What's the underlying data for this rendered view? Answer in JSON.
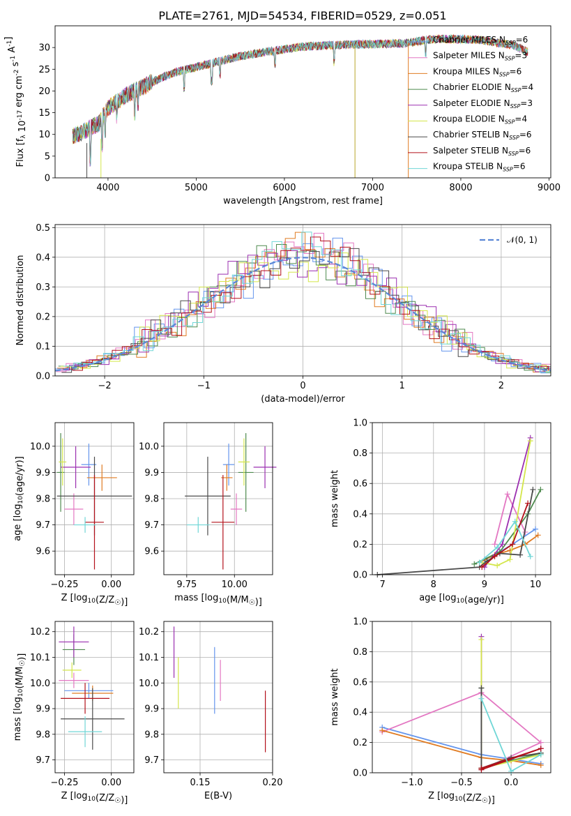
{
  "figure": {
    "title": "PLATE=2761, MJD=54534, FIBERID=0529, z=0.051"
  },
  "colors": {
    "Chabrier MILES": "#6495ed",
    "Salpeter MILES": "#e377c2",
    "Kroupa MILES": "#e07b22",
    "Chabrier ELODIE": "#4e8a4e",
    "Salpeter ELODIE": "#9b2fb0",
    "Kroupa ELODIE": "#d4e64a",
    "Chabrier STELIB": "#4a4a4a",
    "Salpeter STELIB": "#b3101a",
    "Kroupa STELIB": "#6fd6d6"
  },
  "chart_data": [
    {
      "type": "line",
      "title": "PLATE=2761, MJD=54534, FIBERID=0529, z=0.051",
      "xlabel": "wavelength [Angstrom, rest frame]",
      "ylabel": "Flux [f_λ 10^-17 erg cm^-2 s^-1 A^-1]",
      "xlim": [
        3400,
        9020
      ],
      "ylim": [
        0,
        35
      ],
      "xticks": [
        "4000",
        "5000",
        "6000",
        "7000",
        "8000",
        "9000"
      ],
      "yticks": [
        "0",
        "5",
        "10",
        "15",
        "20",
        "25",
        "30"
      ],
      "legend_position": "right",
      "legend": [
        {
          "name": "Chabrier MILES",
          "sub": "SSP",
          "n": "=6"
        },
        {
          "name": "Salpeter MILES",
          "sub": "SSP",
          "n": "=3"
        },
        {
          "name": "Kroupa MILES",
          "sub": "SSP",
          "n": "=6"
        },
        {
          "name": "Chabrier ELODIE",
          "sub": "SSP",
          "n": "=4"
        },
        {
          "name": "Salpeter ELODIE",
          "sub": "SSP",
          "n": "=3"
        },
        {
          "name": "Kroupa ELODIE",
          "sub": "SSP",
          "n": "=4"
        },
        {
          "name": "Chabrier STELIB",
          "sub": "SSP",
          "n": "=6"
        },
        {
          "name": "Salpeter STELIB",
          "sub": "SSP",
          "n": "=6"
        },
        {
          "name": "Kroupa STELIB",
          "sub": "SSP",
          "n": "=6"
        }
      ],
      "continuum": [
        [
          3600,
          9.5
        ],
        [
          3750,
          11
        ],
        [
          3900,
          12.5
        ],
        [
          4000,
          16
        ],
        [
          4200,
          19
        ],
        [
          4400,
          21
        ],
        [
          4600,
          23
        ],
        [
          4800,
          24.5
        ],
        [
          5000,
          25.5
        ],
        [
          5200,
          26.5
        ],
        [
          5500,
          28
        ],
        [
          5800,
          29
        ],
        [
          6200,
          30.2
        ],
        [
          6600,
          30.6
        ],
        [
          7000,
          30.8
        ],
        [
          7400,
          31
        ],
        [
          7600,
          31.8
        ],
        [
          7800,
          32
        ],
        [
          8200,
          31.8
        ],
        [
          8600,
          30.5
        ],
        [
          8760,
          29
        ]
      ]
    },
    {
      "type": "histogram",
      "xlabel": "(data-model)/error",
      "ylabel": "Normed distribution",
      "xlim": [
        -2.5,
        2.5
      ],
      "ylim": [
        0,
        0.51
      ],
      "xticks": [
        "−2",
        "−1",
        "0",
        "1",
        "2"
      ],
      "yticks": [
        "0.0",
        "0.1",
        "0.2",
        "0.3",
        "0.4",
        "0.5"
      ],
      "bin_width": 0.1,
      "legend": "𝒩(0, 1)",
      "offsets": [
        [
          0.02,
          -0.01,
          0.03,
          0.0,
          -0.02,
          0.04,
          -0.03,
          0.01,
          0.05,
          -0.04
        ],
        [
          -0.02,
          0.05,
          -0.01,
          0.03,
          0.0,
          -0.03,
          0.04,
          -0.02,
          0.01,
          0.06
        ],
        [
          0.01,
          0.0,
          -0.03,
          0.02,
          0.04,
          -0.01,
          -0.02,
          0.03,
          -0.04,
          0.0
        ],
        [
          0.03,
          -0.02,
          0.02,
          -0.04,
          0.01,
          0.03,
          0.0,
          -0.03,
          0.02,
          -0.01
        ],
        [
          -0.01,
          0.03,
          0.01,
          0.05,
          -0.03,
          0.0,
          0.02,
          0.04,
          -0.02,
          0.03
        ],
        [
          0.04,
          0.01,
          -0.02,
          0.0,
          0.03,
          -0.04,
          0.01,
          0.0,
          0.05,
          -0.02
        ],
        [
          -0.03,
          0.02,
          0.04,
          -0.01,
          0.0,
          0.02,
          -0.03,
          0.01,
          0.0,
          0.04
        ],
        [
          0.0,
          -0.04,
          0.02,
          0.01,
          -0.01,
          0.03,
          0.02,
          -0.02,
          0.03,
          0.01
        ],
        [
          0.02,
          0.03,
          -0.01,
          -0.02,
          0.04,
          0.0,
          -0.01,
          0.03,
          -0.03,
          0.02
        ]
      ]
    },
    {
      "type": "errorbar",
      "xlabel": "Z [log10(Z/Z☉)]",
      "ylabel": "age [log10(age/yr)]",
      "xlim": [
        -0.3,
        0.12
      ],
      "ylim": [
        9.51,
        10.09
      ],
      "xticks": [
        "−0.25",
        "0.00"
      ],
      "yticks": [
        "9.6",
        "9.7",
        "9.8",
        "9.9",
        "10.0"
      ],
      "points": [
        {
          "x": -0.12,
          "xe": 0.04,
          "y": 9.93,
          "ye": 0.08
        },
        {
          "x": -0.2,
          "xe": 0.05,
          "y": 9.76,
          "ye": 0.06
        },
        {
          "x": -0.05,
          "xe": 0.08,
          "y": 9.88,
          "ye": 0.05
        },
        {
          "x": -0.27,
          "xe": 0.02,
          "y": 9.9,
          "ye": 0.15
        },
        {
          "x": -0.19,
          "xe": 0.08,
          "y": 9.92,
          "ye": 0.08
        },
        {
          "x": -0.26,
          "xe": 0.02,
          "y": 9.94,
          "ye": 0.09
        },
        {
          "x": -0.09,
          "xe": 0.2,
          "y": 9.81,
          "ye": 0.15
        },
        {
          "x": -0.09,
          "xe": 0.05,
          "y": 9.71,
          "ye": 0.18
        },
        {
          "x": -0.14,
          "xe": 0.06,
          "y": 9.7,
          "ye": 0.03
        }
      ]
    },
    {
      "type": "errorbar",
      "xlabel": "mass [log10(M/M☉)]",
      "ylabel": "",
      "xlim": [
        9.63,
        10.2
      ],
      "ylim": [
        9.51,
        10.09
      ],
      "xticks": [
        "9.75",
        "10.00"
      ],
      "yticks": [
        "9.6",
        "9.7",
        "9.8",
        "9.9",
        "10.0"
      ],
      "points": [
        {
          "x": 9.97,
          "xe": 0.03,
          "y": 9.93,
          "ye": 0.08
        },
        {
          "x": 10.01,
          "xe": 0.03,
          "y": 9.76,
          "ye": 0.06
        },
        {
          "x": 9.96,
          "xe": 0.03,
          "y": 9.88,
          "ye": 0.05
        },
        {
          "x": 10.06,
          "xe": 0.04,
          "y": 9.9,
          "ye": 0.15
        },
        {
          "x": 10.16,
          "xe": 0.06,
          "y": 9.92,
          "ye": 0.08
        },
        {
          "x": 10.05,
          "xe": 0.03,
          "y": 9.94,
          "ye": 0.09
        },
        {
          "x": 9.86,
          "xe": 0.12,
          "y": 9.81,
          "ye": 0.15
        },
        {
          "x": 9.94,
          "xe": 0.06,
          "y": 9.71,
          "ye": 0.18
        },
        {
          "x": 9.81,
          "xe": 0.06,
          "y": 9.7,
          "ye": 0.03
        }
      ]
    },
    {
      "type": "line",
      "xlabel": "age [log10(age/yr)]",
      "ylabel": "mass weight",
      "xlim": [
        6.8,
        10.3
      ],
      "ylim": [
        0,
        1
      ],
      "xticks": [
        "7",
        "8",
        "9",
        "10"
      ],
      "yticks": [
        "0.0",
        "0.2",
        "0.4",
        "0.6",
        "0.8",
        "1.0"
      ],
      "series": [
        {
          "x": [
            9.0,
            9.3,
            9.55,
            10.0
          ],
          "y": [
            0.1,
            0.15,
            0.2,
            0.3
          ]
        },
        {
          "x": [
            9.2,
            9.45,
            9.8
          ],
          "y": [
            0.2,
            0.53,
            0.28
          ]
        },
        {
          "x": [
            8.9,
            9.2,
            9.5,
            9.8,
            10.05
          ],
          "y": [
            0.08,
            0.13,
            0.16,
            0.2,
            0.26
          ]
        },
        {
          "x": [
            8.8,
            9.3,
            9.85,
            10.1
          ],
          "y": [
            0.07,
            0.15,
            0.4,
            0.56
          ]
        },
        {
          "x": [
            9.0,
            9.35,
            9.9
          ],
          "y": [
            0.05,
            0.2,
            0.9
          ]
        },
        {
          "x": [
            8.95,
            9.25,
            9.5,
            9.9
          ],
          "y": [
            0.08,
            0.06,
            0.1,
            0.88
          ]
        },
        {
          "x": [
            6.9,
            8.9,
            9.05,
            9.3,
            9.7,
            9.95
          ],
          "y": [
            0.0,
            0.05,
            0.09,
            0.14,
            0.13,
            0.56
          ]
        },
        {
          "x": [
            8.95,
            9.2,
            9.55,
            9.85
          ],
          "y": [
            0.05,
            0.12,
            0.2,
            0.47
          ]
        },
        {
          "x": [
            8.9,
            9.25,
            9.6,
            9.9
          ],
          "y": [
            0.08,
            0.18,
            0.35,
            0.12
          ]
        }
      ]
    },
    {
      "type": "errorbar",
      "xlabel": "Z [log10(Z/Z☉)]",
      "ylabel": "mass [log10(M/M☉)]",
      "xlim": [
        -0.3,
        0.12
      ],
      "ylim": [
        9.65,
        10.24
      ],
      "xticks": [
        "−0.25",
        "0.00"
      ],
      "yticks": [
        "9.7",
        "9.8",
        "9.9",
        "10.0",
        "10.1",
        "10.2"
      ],
      "points": [
        {
          "x": -0.12,
          "xe": 0.13,
          "y": 9.97,
          "ye": 0.03
        },
        {
          "x": -0.2,
          "xe": 0.08,
          "y": 10.01,
          "ye": 0.03
        },
        {
          "x": -0.1,
          "xe": 0.11,
          "y": 9.96,
          "ye": 0.03
        },
        {
          "x": -0.2,
          "xe": 0.06,
          "y": 10.13,
          "ye": 0.06
        },
        {
          "x": -0.2,
          "xe": 0.08,
          "y": 10.16,
          "ye": 0.06
        },
        {
          "x": -0.21,
          "xe": 0.05,
          "y": 10.05,
          "ye": 0.03
        },
        {
          "x": -0.1,
          "xe": 0.17,
          "y": 9.86,
          "ye": 0.12
        },
        {
          "x": -0.14,
          "xe": 0.13,
          "y": 9.94,
          "ye": 0.06
        },
        {
          "x": -0.14,
          "xe": 0.09,
          "y": 9.81,
          "ye": 0.06
        }
      ]
    },
    {
      "type": "errorbar",
      "xlabel": "E(B-V)",
      "ylabel": "",
      "xlim": [
        0.125,
        0.2
      ],
      "ylim": [
        9.65,
        10.24
      ],
      "xticks": [
        "0.15",
        "0.20"
      ],
      "yticks": [
        "9.7",
        "9.8",
        "9.9",
        "10.0",
        "10.1",
        "10.2"
      ],
      "points": [
        {
          "x": 0.16,
          "xe": 0,
          "y": 10.01,
          "ye": 0.13
        },
        {
          "x": 0.164,
          "xe": 0,
          "y": 10.01,
          "ye": 0.08
        },
        {
          "x": 0.132,
          "xe": 0,
          "y": 10.12,
          "ye": 0.1
        },
        {
          "x": 0.135,
          "xe": 0,
          "y": 10.0,
          "ye": 0.1
        },
        {
          "x": 0.195,
          "xe": 0,
          "y": 9.85,
          "ye": 0.12
        }
      ]
    },
    {
      "type": "line",
      "xlabel": "Z [log10(Z/Z☉)]",
      "ylabel": "mass weight",
      "xlim": [
        -1.4,
        0.4
      ],
      "ylim": [
        0,
        1
      ],
      "xticks": [
        "−1.0",
        "−0.5",
        "0.0"
      ],
      "yticks": [
        "0.0",
        "0.2",
        "0.4",
        "0.6",
        "0.8",
        "1.0"
      ],
      "series": [
        {
          "x": [
            -1.3,
            -0.3,
            0.0,
            0.3
          ],
          "y": [
            0.3,
            0.12,
            0.09,
            0.06
          ]
        },
        {
          "x": [
            -1.3,
            -0.3,
            0.3,
            -0.3
          ],
          "y": [
            0.27,
            0.53,
            0.2,
            0.02
          ]
        },
        {
          "x": [
            -1.3,
            -0.3,
            0.0,
            0.3
          ],
          "y": [
            0.28,
            0.1,
            0.08,
            0.05
          ]
        },
        {
          "x": [
            -0.3,
            -0.3,
            0.3
          ],
          "y": [
            0.56,
            0.03,
            0.13
          ]
        },
        {
          "x": [
            -0.3,
            -0.3,
            0.3
          ],
          "y": [
            0.9,
            0.03,
            0.16
          ]
        },
        {
          "x": [
            -0.3,
            -0.3,
            0.3
          ],
          "y": [
            0.88,
            0.03,
            0.12
          ]
        },
        {
          "x": [
            -0.3,
            -0.3,
            0.0,
            0.3
          ],
          "y": [
            0.56,
            0.03,
            0.1,
            0.13
          ]
        },
        {
          "x": [
            -0.3,
            0.3,
            -0.3
          ],
          "y": [
            0.02,
            0.16,
            0.03
          ]
        },
        {
          "x": [
            -0.3,
            0.0,
            0.3
          ],
          "y": [
            0.49,
            0.01,
            0.12
          ]
        }
      ]
    }
  ]
}
